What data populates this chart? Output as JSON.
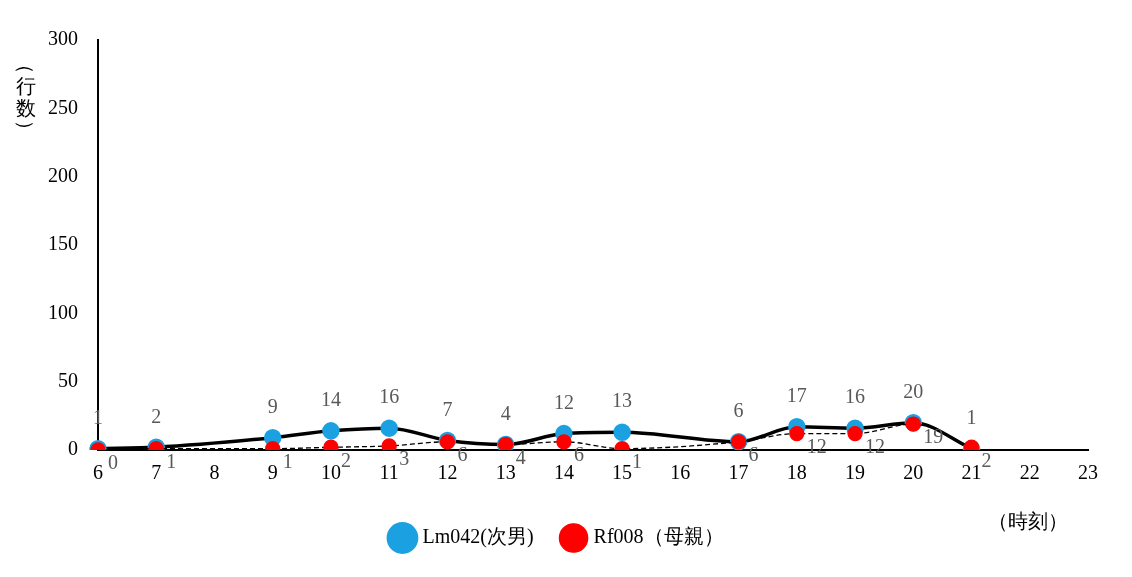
{
  "chart_data": {
    "type": "line",
    "ylabel": "（行数）",
    "xlabel": "（時刻）",
    "categories": [
      "6",
      "7",
      "8",
      "9",
      "10",
      "11",
      "12",
      "13",
      "14",
      "15",
      "16",
      "17",
      "18",
      "19",
      "20",
      "21",
      "22",
      "23"
    ],
    "series": [
      {
        "name": "Lm042(次男)",
        "color": "#1ba1e2",
        "line_style": "solid",
        "values": [
          1,
          2,
          null,
          9,
          14,
          16,
          7,
          4,
          12,
          13,
          null,
          6,
          17,
          16,
          20,
          1,
          null,
          null
        ]
      },
      {
        "name": "Rf008（母親）",
        "color": "#ff0000",
        "line_style": "dashed",
        "values": [
          0,
          1,
          null,
          1,
          2,
          3,
          6,
          4,
          6,
          1,
          null,
          6,
          12,
          12,
          19,
          2,
          null,
          null
        ]
      }
    ],
    "ylim": [
      0,
      300
    ],
    "yticks": [
      0,
      50,
      100,
      150,
      200,
      250,
      300
    ],
    "grid": false,
    "legend": "bottom",
    "marker": "circle",
    "data_labels": true
  }
}
